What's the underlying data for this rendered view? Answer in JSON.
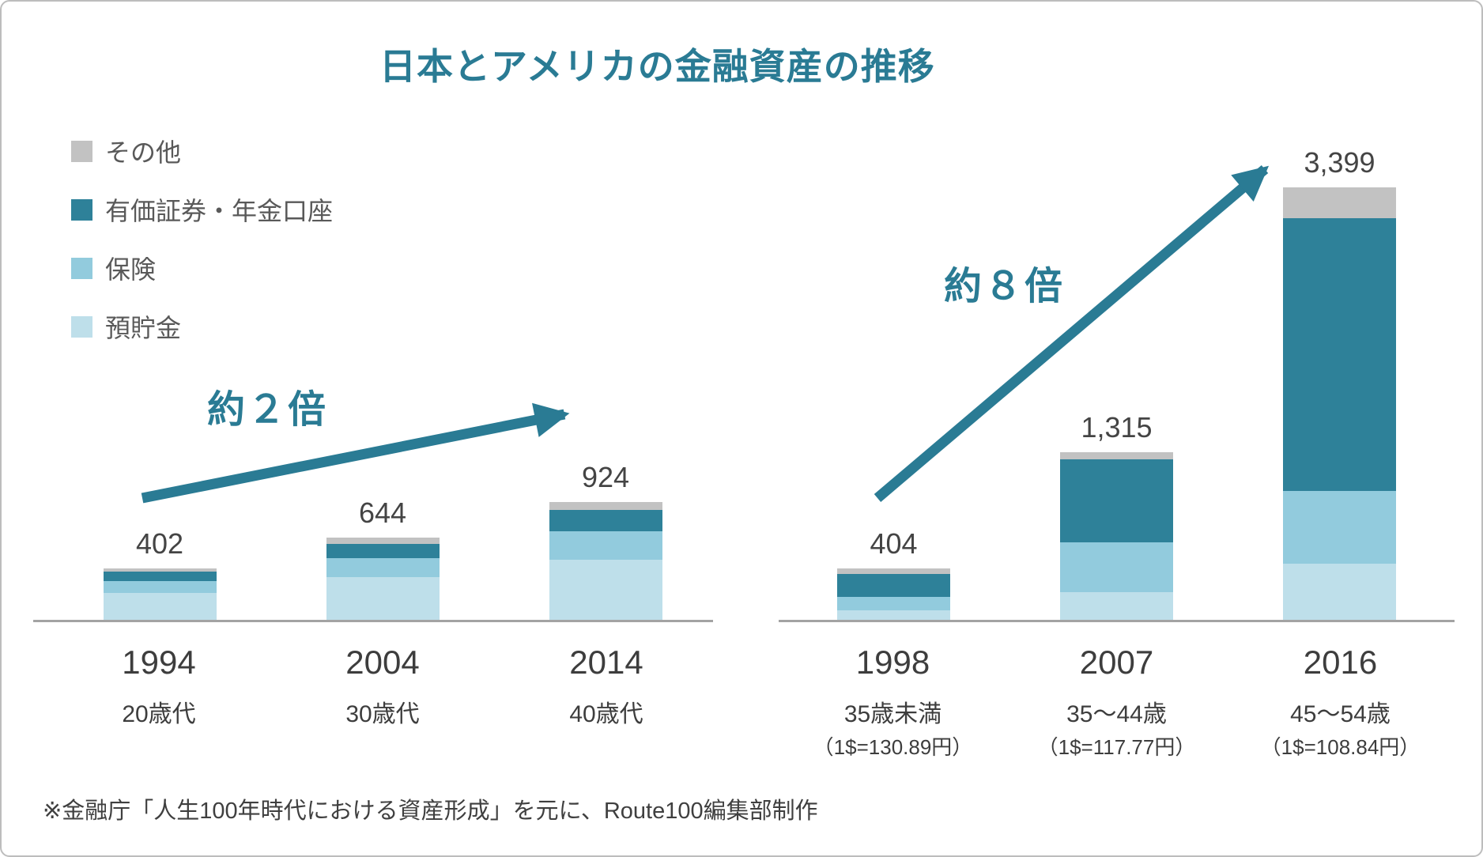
{
  "title": {
    "text": "日本とアメリカの金融資産の推移"
  },
  "colors": {
    "accent_teal": "#2a7b94",
    "securities": "#2e8199",
    "insurance": "#92cbdd",
    "deposits": "#bedfea",
    "other": "#c2c2c2",
    "axis_gray": "#a3a3a3"
  },
  "legend": {
    "items": [
      {
        "label": "その他",
        "color": "#c2c2c2"
      },
      {
        "label": "有価証券・年金口座",
        "color": "#2e8199"
      },
      {
        "label": "保険",
        "color": "#92cbdd"
      },
      {
        "label": "預貯金",
        "color": "#bedfea"
      }
    ]
  },
  "chart_data": [
    {
      "type": "bar",
      "stacked": true,
      "group": "日本",
      "categories": [
        "1994",
        "2004",
        "2014"
      ],
      "age_groups": [
        "20歳代",
        "30歳代",
        "40歳代"
      ],
      "totals": [
        402,
        644,
        924
      ],
      "total_labels": [
        "402",
        "644",
        "924"
      ],
      "series": [
        {
          "name": "預貯金",
          "color": "#bedfea",
          "values": [
            210,
            338,
            474
          ]
        },
        {
          "name": "保険",
          "color": "#92cbdd",
          "values": [
            93,
            149,
            222
          ]
        },
        {
          "name": "有価証券・年金口座",
          "color": "#2e8199",
          "values": [
            74,
            107,
            166
          ]
        },
        {
          "name": "その他",
          "color": "#c2c2c2",
          "values": [
            25,
            50,
            62
          ]
        }
      ],
      "annotation": "約２倍",
      "ylim": [
        0,
        3500
      ],
      "grid": false,
      "legend_position": "top-left"
    },
    {
      "type": "bar",
      "stacked": true,
      "group": "アメリカ",
      "categories": [
        "1998",
        "2007",
        "2016"
      ],
      "age_groups": [
        "35歳未満",
        "35〜44歳",
        "45〜54歳"
      ],
      "exchange_rates": [
        "（1$=130.89円）",
        "（1$=117.77円）",
        "（1$=108.84円）"
      ],
      "totals": [
        404,
        1315,
        3399
      ],
      "total_labels": [
        "404",
        "1,315",
        "3,399"
      ],
      "series": [
        {
          "name": "預貯金",
          "color": "#bedfea",
          "values": [
            77,
            220,
            441
          ]
        },
        {
          "name": "保険",
          "color": "#92cbdd",
          "values": [
            105,
            390,
            572
          ]
        },
        {
          "name": "有価証券・年金口座",
          "color": "#2e8199",
          "values": [
            180,
            649,
            2144
          ]
        },
        {
          "name": "その他",
          "color": "#c2c2c2",
          "values": [
            42,
            56,
            242
          ]
        }
      ],
      "annotation": "約８倍",
      "ylim": [
        0,
        3500
      ],
      "grid": false
    }
  ],
  "footer": {
    "text": "※金融庁「人生100年時代における資産形成」を元に、Route100編集部制作"
  }
}
